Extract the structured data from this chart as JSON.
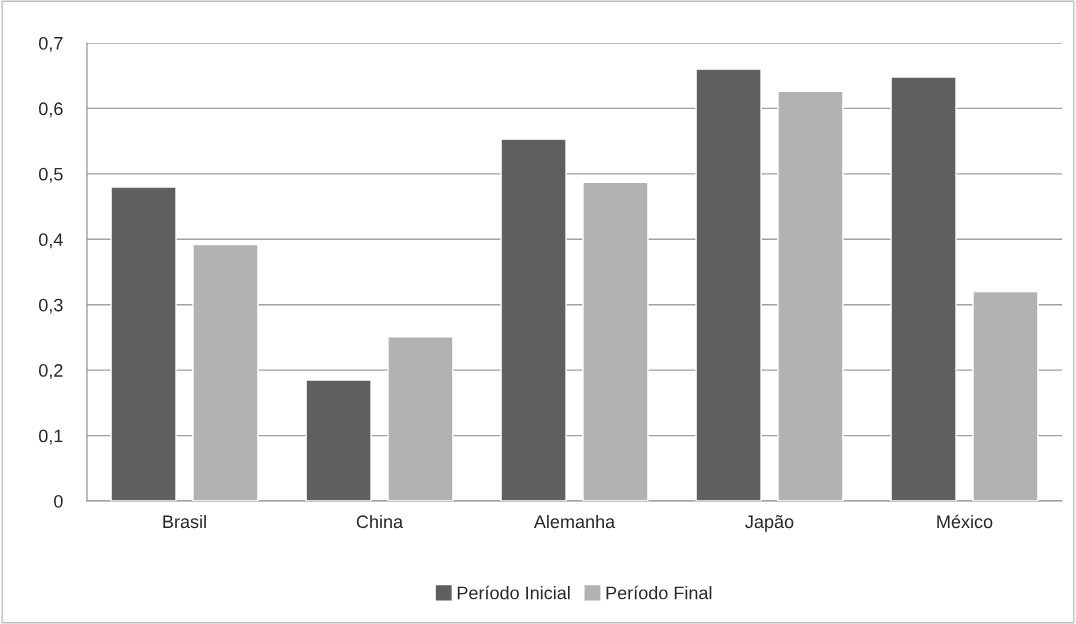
{
  "chart_data": {
    "type": "bar",
    "categories": [
      "Brasil",
      "China",
      "Alemanha",
      "Japão",
      "México"
    ],
    "series": [
      {
        "name": "Período Inicial",
        "color": "#5f5f5f",
        "values": [
          0.48,
          0.185,
          0.553,
          0.66,
          0.648
        ]
      },
      {
        "name": "Período Final",
        "color": "#b2b2b2",
        "values": [
          0.392,
          0.251,
          0.487,
          0.626,
          0.32
        ]
      }
    ],
    "ylim": [
      0,
      0.7
    ],
    "yticks": [
      0,
      {
        "value": 0.1,
        "label": "0,1"
      },
      {
        "value": 0.2,
        "label": "0,2"
      },
      {
        "value": 0.3,
        "label": "0,3"
      },
      {
        "value": 0.4,
        "label": "0,4"
      },
      {
        "value": 0.5,
        "label": "0,5"
      },
      {
        "value": 0.6,
        "label": "0,6"
      },
      {
        "value": 0.7,
        "label": "0,7"
      }
    ],
    "grid": "y",
    "legend": "bottom"
  }
}
